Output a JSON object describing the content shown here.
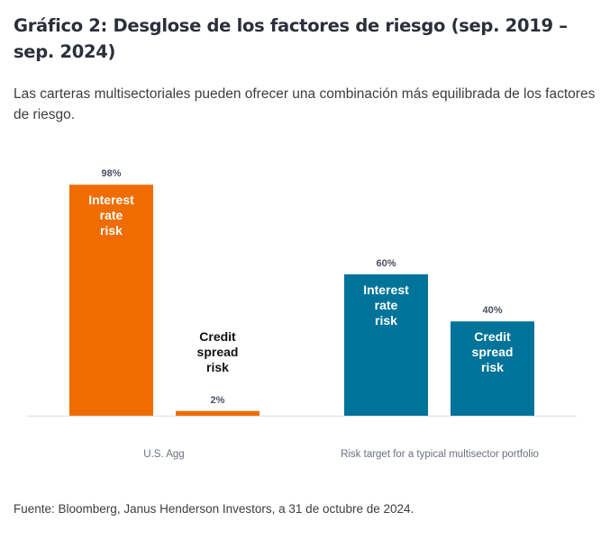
{
  "header": {
    "title": "Gráfico 2: Desglose de los factores de riesgo (sep. 2019 – sep. 2024)",
    "subtitle": "Las carteras multisectoriales pueden ofrecer una combinación más equilibrada de los factores de riesgo."
  },
  "footer": {
    "source": "Fuente: Bloomberg, Janus Henderson Investors, a 31 de octubre de 2024."
  },
  "colors": {
    "orange": "#ef6c00",
    "teal": "#00739a",
    "axis": "#e3e5ea"
  },
  "chart_data": {
    "type": "bar",
    "title": "Gráfico 2: Desglose de los factores de riesgo (sep. 2019 – sep. 2024)",
    "xlabel": "",
    "ylabel": "",
    "ylim": [
      0,
      100
    ],
    "grid": false,
    "legend": "none",
    "categories": [
      "U.S. Agg",
      "Risk target for a typical multisector portfolio"
    ],
    "bars": [
      {
        "group": 0,
        "name": "Interest rate risk",
        "value": 98,
        "label": "98%",
        "inner_label": [
          "Interest",
          "rate",
          "risk"
        ],
        "color": "#ef6c00",
        "label_inside": true
      },
      {
        "group": 0,
        "name": "Credit spread risk",
        "value": 2,
        "label": "2%",
        "inner_label": [
          "Credit",
          "spread",
          "risk"
        ],
        "color": "#ef6c00",
        "label_inside": false
      },
      {
        "group": 1,
        "name": "Interest rate risk",
        "value": 60,
        "label": "60%",
        "inner_label": [
          "Interest",
          "rate",
          "risk"
        ],
        "color": "#00739a",
        "label_inside": true
      },
      {
        "group": 1,
        "name": "Credit spread risk",
        "value": 40,
        "label": "40%",
        "inner_label": [
          "Credit",
          "spread",
          "risk"
        ],
        "color": "#00739a",
        "label_inside": true
      }
    ]
  }
}
